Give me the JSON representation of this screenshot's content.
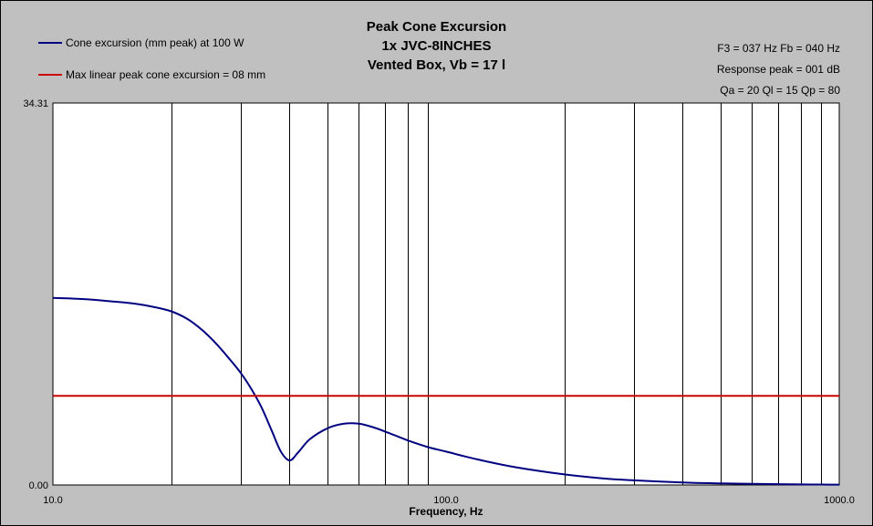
{
  "colors": {
    "background": "#c0c0c0",
    "plot_background": "#ffffff",
    "excursion": "#000080",
    "xmax_line": "#cc0000",
    "grid": "#000000"
  },
  "title": [
    "Peak Cone Excursion",
    "1x JVC-8INCHES",
    "Vented Box, Vb = 17 l"
  ],
  "info": [
    "F3 = 037 Hz  Fb = 040 Hz",
    "Response peak = 001 dB",
    "Qa = 20  Ql = 15  Qp = 80"
  ],
  "chart_data": {
    "type": "line",
    "title": "Peak Cone Excursion",
    "xlabel": "Frequency, Hz",
    "ylabel": "",
    "x_scale": "log",
    "xlim": [
      10.0,
      1000.0
    ],
    "ylim": [
      0.0,
      34.31
    ],
    "y_tick_labels": [
      "0.00",
      "34.31"
    ],
    "x_tick_labels": [
      "10.0",
      "100.0",
      "1000.0"
    ],
    "x_tick_values": [
      10,
      100,
      1000
    ],
    "x_gridlines": [
      20,
      30,
      40,
      50,
      60,
      70,
      80,
      90,
      200,
      300,
      400,
      500,
      600,
      700,
      800,
      900
    ],
    "legend_position": "top-left",
    "series": [
      {
        "name": "Cone excursion (mm peak) at 100 W",
        "color": "#000080",
        "x": [
          10,
          12,
          14,
          16,
          18,
          20,
          22,
          24,
          26,
          28,
          30,
          32,
          34,
          36,
          38,
          40,
          42,
          45,
          50,
          55,
          60,
          65,
          70,
          80,
          90,
          100,
          120,
          150,
          200,
          250,
          300,
          400,
          500,
          600,
          700,
          800,
          900,
          1000
        ],
        "y": [
          16.8,
          16.7,
          16.5,
          16.3,
          16.0,
          15.6,
          14.9,
          13.9,
          12.7,
          11.4,
          10.1,
          8.6,
          6.9,
          4.9,
          3.0,
          2.2,
          2.9,
          4.1,
          5.1,
          5.5,
          5.5,
          5.2,
          4.8,
          4.0,
          3.4,
          3.0,
          2.3,
          1.6,
          0.95,
          0.6,
          0.42,
          0.22,
          0.14,
          0.1,
          0.07,
          0.05,
          0.04,
          0.03
        ]
      },
      {
        "name": "Max linear peak cone excursion = 08 mm",
        "color": "#cc0000",
        "x": [
          10,
          1000
        ],
        "y": [
          8,
          8
        ]
      }
    ]
  }
}
